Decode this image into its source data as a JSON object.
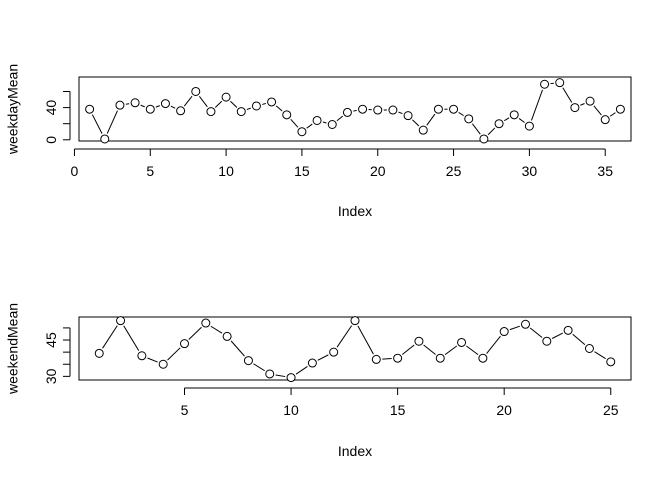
{
  "chart_data": [
    {
      "type": "line",
      "style": "points-and-lines",
      "xlabel": "Index",
      "ylabel": "weekdayMean",
      "xlim": [
        0.3,
        36.7
      ],
      "ylim": [
        -1.5,
        78
      ],
      "xticks": [
        0,
        5,
        10,
        15,
        20,
        25,
        30,
        35
      ],
      "yticks": [
        0,
        20,
        40,
        60
      ],
      "ytick_labels": [
        "0",
        "",
        "40",
        ""
      ],
      "x": [
        1,
        2,
        3,
        4,
        5,
        6,
        7,
        8,
        9,
        10,
        11,
        12,
        13,
        14,
        15,
        16,
        17,
        18,
        19,
        20,
        21,
        22,
        23,
        24,
        25,
        26,
        27,
        28,
        29,
        30,
        31,
        32,
        33,
        34,
        35,
        36
      ],
      "values": [
        38,
        1,
        43,
        46,
        38,
        45,
        36,
        60,
        35,
        53,
        35,
        42,
        47,
        31,
        10,
        24,
        19,
        34,
        38,
        37,
        37,
        30,
        12,
        38,
        38,
        26,
        1,
        20,
        31,
        17,
        69,
        71,
        40,
        48,
        25,
        38
      ]
    },
    {
      "type": "line",
      "style": "points-and-lines",
      "xlabel": "Index",
      "ylabel": "weekendMean",
      "xlim": [
        0.05,
        25.95
      ],
      "ylim": [
        28.5,
        54.5
      ],
      "xticks": [
        5,
        10,
        15,
        20,
        25
      ],
      "yticks": [
        30,
        35,
        40,
        45,
        50
      ],
      "ytick_labels": [
        "30",
        "",
        "",
        "45",
        ""
      ],
      "x": [
        1,
        2,
        3,
        4,
        5,
        6,
        7,
        8,
        9,
        10,
        11,
        12,
        13,
        14,
        15,
        16,
        17,
        18,
        19,
        20,
        21,
        22,
        23,
        24,
        25
      ],
      "values": [
        39.5,
        53,
        38.5,
        35,
        43.5,
        52,
        46.5,
        36.5,
        31,
        29.5,
        35.5,
        40,
        53,
        37,
        37.5,
        44.5,
        37.5,
        44,
        37.5,
        48.5,
        51.5,
        44.5,
        49,
        41.5,
        36
      ]
    }
  ]
}
